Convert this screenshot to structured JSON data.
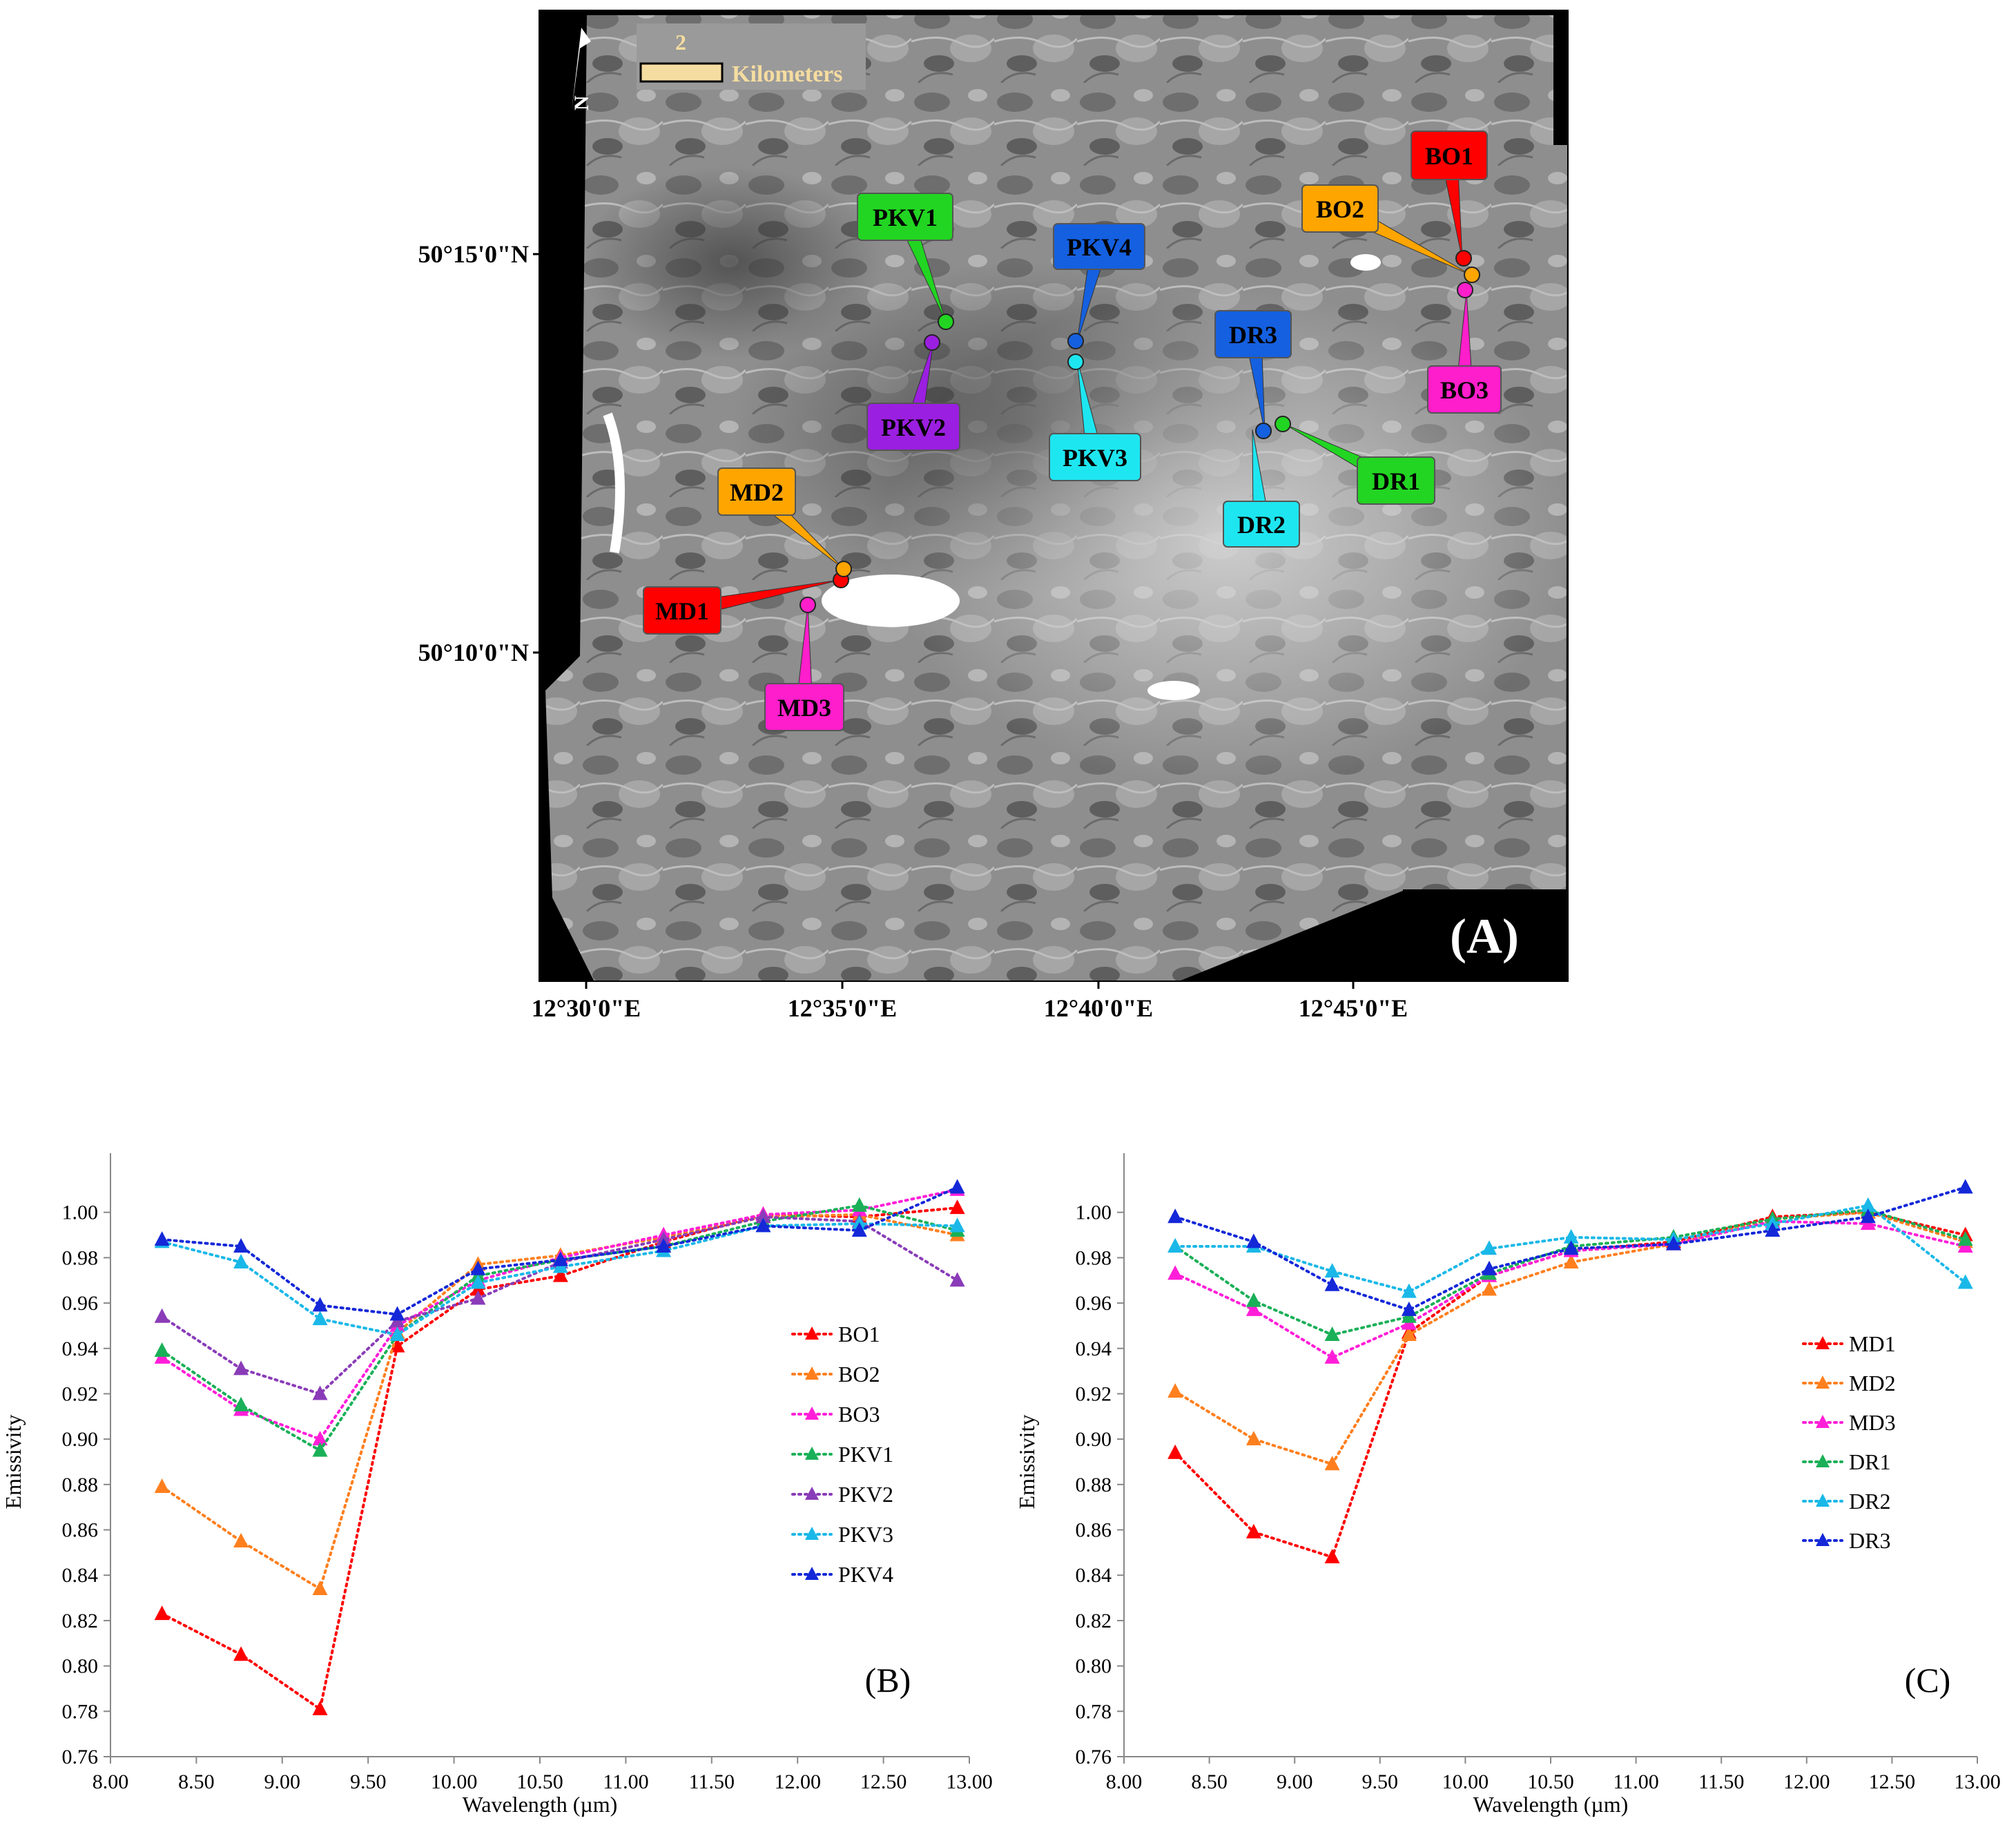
{
  "map": {
    "panel_label": "(A)",
    "scale_bar": {
      "value": "2",
      "unit": "Kilometers"
    },
    "lat_labels": [
      "50°15'0\"N",
      "50°10'0\"N"
    ],
    "lon_labels": [
      "12°30'0\"E",
      "12°35'0\"E",
      "12°40'0\"E",
      "12°45'0\"E"
    ],
    "markers": [
      {
        "label": "BO1",
        "color": "#ff0000",
        "text_color": "#000000"
      },
      {
        "label": "BO2",
        "color": "#ffa500",
        "text_color": "#000000"
      },
      {
        "label": "BO3",
        "color": "#ff1ecb",
        "text_color": "#000000"
      },
      {
        "label": "PKV1",
        "color": "#22d522",
        "text_color": "#000000"
      },
      {
        "label": "PKV2",
        "color": "#9b1fe0",
        "text_color": "#000000"
      },
      {
        "label": "PKV3",
        "color": "#1ee6f0",
        "text_color": "#000000"
      },
      {
        "label": "PKV4",
        "color": "#1560e0",
        "text_color": "#000000"
      },
      {
        "label": "DR1",
        "color": "#22d522",
        "text_color": "#000000"
      },
      {
        "label": "DR2",
        "color": "#1ee6f0",
        "text_color": "#000000"
      },
      {
        "label": "DR3",
        "color": "#1560e0",
        "text_color": "#000000"
      },
      {
        "label": "MD1",
        "color": "#ff0000",
        "text_color": "#000000"
      },
      {
        "label": "MD2",
        "color": "#ffa500",
        "text_color": "#000000"
      },
      {
        "label": "MD3",
        "color": "#ff1ecb",
        "text_color": "#000000"
      }
    ]
  },
  "chart_data": [
    {
      "type": "line",
      "panel_label": "(B)",
      "xlabel": "Wavelength (µm)",
      "ylabel": "Emissivity",
      "xlim": [
        8.0,
        13.0
      ],
      "ylim": [
        0.76,
        1.02
      ],
      "x_ticks": [
        "8.00",
        "8.50",
        "9.00",
        "9.50",
        "10.00",
        "10.50",
        "11.00",
        "11.50",
        "12.00",
        "12.50",
        "13.00"
      ],
      "y_ticks": [
        "0.76",
        "0.78",
        "0.80",
        "0.82",
        "0.84",
        "0.86",
        "0.88",
        "0.90",
        "0.92",
        "0.94",
        "0.96",
        "0.98",
        "1.00"
      ],
      "legend_position": "right",
      "x": [
        8.3,
        8.76,
        9.22,
        9.67,
        10.14,
        10.62,
        11.22,
        11.8,
        12.36,
        12.93
      ],
      "series": [
        {
          "name": "BO1",
          "color": "#ff0000",
          "values": [
            0.823,
            0.805,
            0.781,
            0.941,
            0.966,
            0.972,
            0.987,
            0.999,
            0.998,
            1.002
          ]
        },
        {
          "name": "BO2",
          "color": "#ff7f1e",
          "values": [
            0.879,
            0.855,
            0.834,
            0.947,
            0.977,
            0.981,
            0.989,
            0.998,
            0.999,
            0.99
          ]
        },
        {
          "name": "BO3",
          "color": "#ff1ed8",
          "values": [
            0.936,
            0.913,
            0.9,
            0.95,
            0.97,
            0.98,
            0.99,
            0.999,
            1.001,
            1.01
          ]
        },
        {
          "name": "PKV1",
          "color": "#1ab058",
          "values": [
            0.939,
            0.915,
            0.895,
            0.946,
            0.972,
            0.979,
            0.985,
            0.996,
            1.003,
            0.992
          ]
        },
        {
          "name": "PKV2",
          "color": "#8a3cb8",
          "values": [
            0.954,
            0.931,
            0.92,
            0.952,
            0.962,
            0.978,
            0.988,
            0.998,
            0.996,
            0.97
          ]
        },
        {
          "name": "PKV3",
          "color": "#1ab8e8",
          "values": [
            0.987,
            0.978,
            0.953,
            0.946,
            0.969,
            0.976,
            0.983,
            0.994,
            0.995,
            0.994
          ]
        },
        {
          "name": "PKV4",
          "color": "#1428d8",
          "values": [
            0.988,
            0.985,
            0.959,
            0.955,
            0.975,
            0.979,
            0.985,
            0.994,
            0.992,
            1.011
          ]
        }
      ]
    },
    {
      "type": "line",
      "panel_label": "(C)",
      "xlabel": "Wavelength (µm)",
      "ylabel": "Emissivity",
      "xlim": [
        8.0,
        13.0
      ],
      "ylim": [
        0.76,
        1.02
      ],
      "x_ticks": [
        "8.00",
        "8.50",
        "9.00",
        "9.50",
        "10.00",
        "10.50",
        "11.00",
        "11.50",
        "12.00",
        "12.50",
        "13.00"
      ],
      "y_ticks": [
        "0.76",
        "0.78",
        "0.80",
        "0.82",
        "0.84",
        "0.86",
        "0.88",
        "0.90",
        "0.92",
        "0.94",
        "0.96",
        "0.98",
        "1.00"
      ],
      "legend_position": "right",
      "x": [
        8.3,
        8.76,
        9.22,
        9.67,
        10.14,
        10.62,
        11.22,
        11.8,
        12.36,
        12.93
      ],
      "series": [
        {
          "name": "MD1",
          "color": "#ff0000",
          "values": [
            0.894,
            0.859,
            0.848,
            0.947,
            0.972,
            0.983,
            0.987,
            0.998,
            1.0,
            0.99
          ]
        },
        {
          "name": "MD2",
          "color": "#ff7f1e",
          "values": [
            0.921,
            0.9,
            0.889,
            0.946,
            0.966,
            0.978,
            0.986,
            0.997,
            1.0,
            0.987
          ]
        },
        {
          "name": "MD3",
          "color": "#ff1ed8",
          "values": [
            0.973,
            0.957,
            0.936,
            0.951,
            0.972,
            0.983,
            0.986,
            0.996,
            0.995,
            0.985
          ]
        },
        {
          "name": "DR1",
          "color": "#1ab058",
          "values": [
            0.985,
            0.961,
            0.946,
            0.954,
            0.973,
            0.985,
            0.989,
            0.997,
            1.001,
            0.988
          ]
        },
        {
          "name": "DR2",
          "color": "#1ab8e8",
          "values": [
            0.985,
            0.985,
            0.974,
            0.965,
            0.984,
            0.989,
            0.988,
            0.995,
            1.003,
            0.969
          ]
        },
        {
          "name": "DR3",
          "color": "#1428d8",
          "values": [
            0.998,
            0.987,
            0.968,
            0.957,
            0.975,
            0.984,
            0.986,
            0.992,
            0.998,
            1.011
          ]
        }
      ]
    }
  ]
}
